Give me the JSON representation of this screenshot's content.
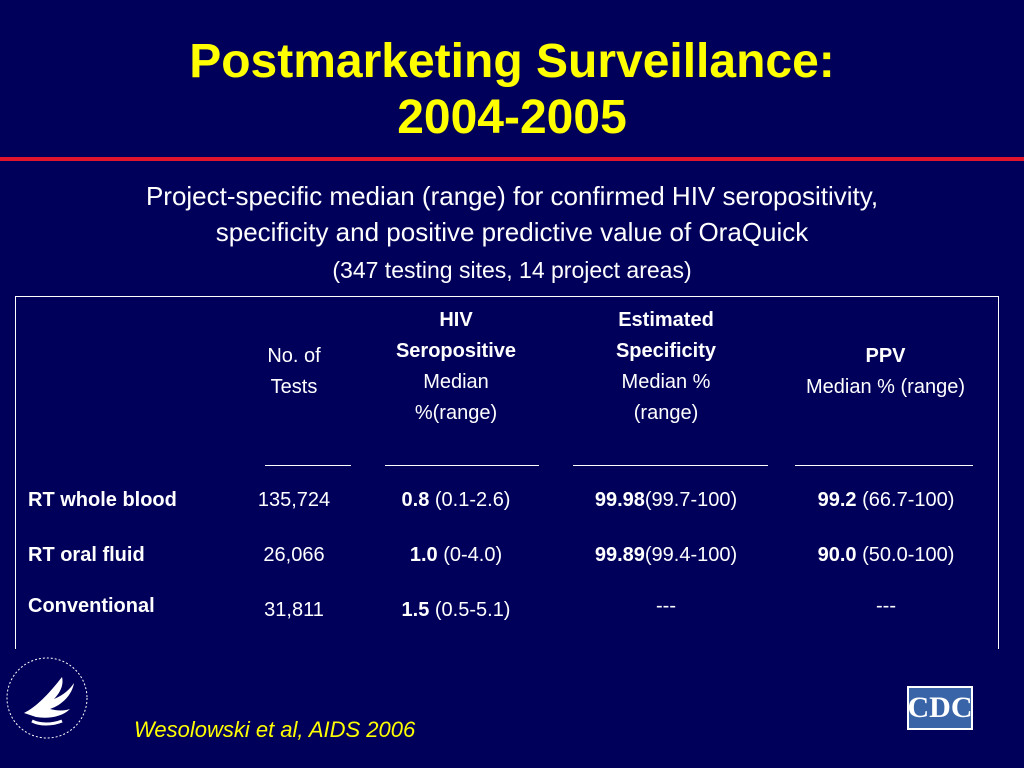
{
  "slide": {
    "title_line1": "Postmarketing Surveillance:",
    "title_line2": "2004-2005",
    "subtitle_line1": "Project-specific median (range) for confirmed HIV seropositivity,",
    "subtitle_line2": "specificity and positive predictive value of OraQuick",
    "subnote": "(347 testing sites, 14 project areas)"
  },
  "table": {
    "columns": {
      "tests": {
        "line1": "No. of",
        "line2": "Tests"
      },
      "hiv": {
        "bold1": "HIV",
        "bold2": "Seropositive",
        "line1": "Median",
        "line2": "%(range)"
      },
      "spec": {
        "bold1": "Estimated",
        "bold2": "Specificity",
        "line1": "Median %",
        "line2": "(range)"
      },
      "ppv": {
        "bold1": "PPV",
        "line1": "Median % (range)"
      }
    },
    "rows": [
      {
        "label": "RT whole blood",
        "tests": "135,724",
        "hiv_median": "0.8",
        "hiv_range": " (0.1-2.6)",
        "spec_median": "99.98",
        "spec_range": "(99.7-100)",
        "ppv_median": "99.2",
        "ppv_range": " (66.7-100)"
      },
      {
        "label": "RT oral fluid",
        "tests": "26,066",
        "hiv_median": "1.0",
        "hiv_range": " (0-4.0)",
        "spec_median": "99.89",
        "spec_range": "(99.4-100)",
        "ppv_median": "90.0",
        "ppv_range": " (50.0-100)"
      },
      {
        "label": "Conventional",
        "tests": "31,811",
        "hiv_median": "1.5",
        "hiv_range": " (0.5-5.1)",
        "spec_median": "",
        "spec_range": "---",
        "ppv_median": "",
        "ppv_range": "---"
      }
    ]
  },
  "footer": {
    "citation": "Wesolowski et al, AIDS 2006",
    "cdc_logo_text": "CDC",
    "hhs_logo_icon": "hhs-eagle-seal-icon"
  },
  "colors": {
    "background": "#00005a",
    "title": "#ffff00",
    "rule": "#e0142c",
    "text": "#ffffff",
    "cdc_blue": "#3a64a8"
  }
}
